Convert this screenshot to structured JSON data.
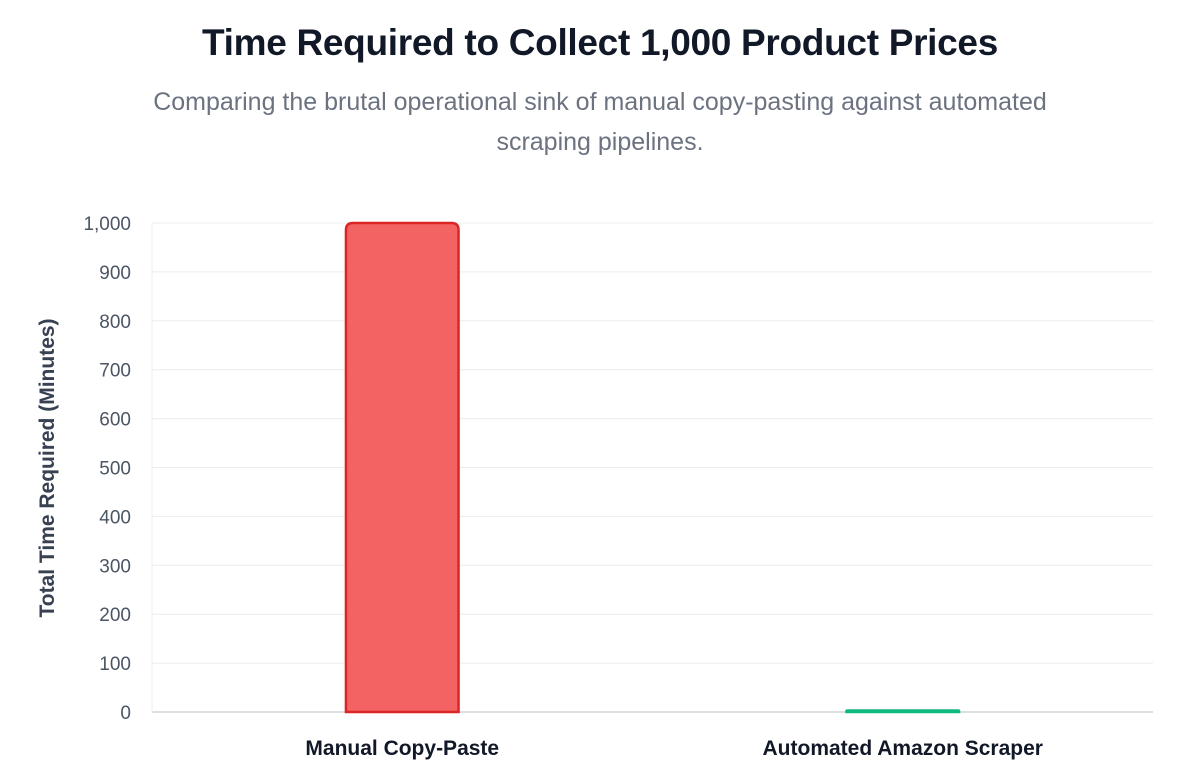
{
  "chart_data": {
    "type": "bar",
    "title": "Time Required to Collect 1,000 Product Prices",
    "subtitle": "Comparing the brutal operational sink of manual copy-pasting against automated scraping pipelines.",
    "xlabel": "",
    "ylabel": "Total Time Required (Minutes)",
    "categories": [
      "Manual Copy-Paste",
      "Automated Amazon Scraper"
    ],
    "values": [
      1000,
      3
    ],
    "ylim": [
      0,
      1000
    ],
    "yticks": [
      0,
      100,
      200,
      300,
      400,
      500,
      600,
      700,
      800,
      900,
      1000
    ],
    "ytick_labels": [
      "0",
      "100",
      "200",
      "300",
      "400",
      "500",
      "600",
      "700",
      "800",
      "900",
      "1,000"
    ],
    "colors": {
      "fill": [
        "#f36363",
        "#8ee0c0"
      ],
      "stroke": [
        "#dc2626",
        "#10b981"
      ]
    },
    "grid": true,
    "legend": "none"
  }
}
